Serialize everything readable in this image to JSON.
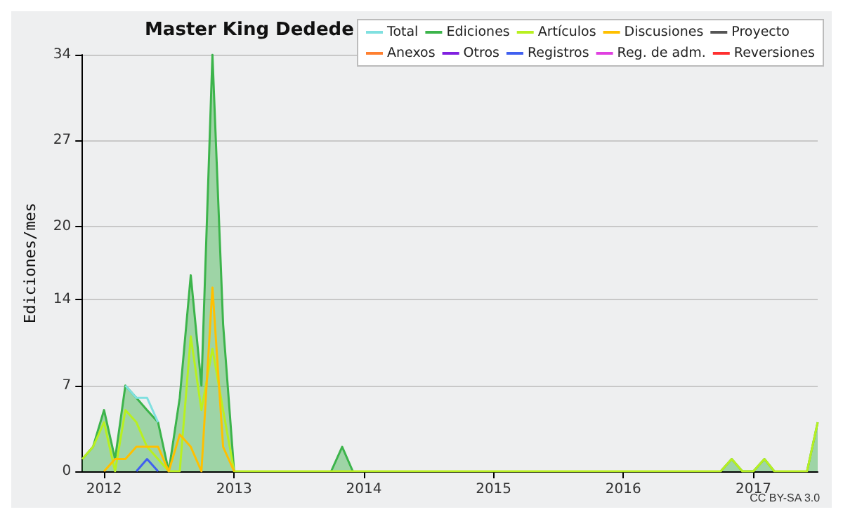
{
  "chart_data": {
    "type": "line",
    "title": "Master King Dedede",
    "ylabel": "Ediciones/mes",
    "annotations": [
      "CC BY-SA 3.0"
    ],
    "x": [
      "2011-11",
      "2011-12",
      "2012-01",
      "2012-02",
      "2012-03",
      "2012-04",
      "2012-05",
      "2012-06",
      "2012-07",
      "2012-08",
      "2012-09",
      "2012-10",
      "2012-11",
      "2012-12",
      "2013-01",
      "2013-02",
      "2013-03",
      "2013-04",
      "2013-05",
      "2013-06",
      "2013-07",
      "2013-08",
      "2013-09",
      "2013-10",
      "2013-11",
      "2013-12",
      "2014-01",
      "2014-02",
      "2014-03",
      "2014-04",
      "2014-05",
      "2014-06",
      "2014-07",
      "2014-08",
      "2014-09",
      "2014-10",
      "2014-11",
      "2014-12",
      "2015-01",
      "2015-02",
      "2015-03",
      "2015-04",
      "2015-05",
      "2015-06",
      "2015-07",
      "2015-08",
      "2015-09",
      "2015-10",
      "2015-11",
      "2015-12",
      "2016-01",
      "2016-02",
      "2016-03",
      "2016-04",
      "2016-05",
      "2016-06",
      "2016-07",
      "2016-08",
      "2016-09",
      "2016-10",
      "2016-11",
      "2016-12",
      "2017-01",
      "2017-02",
      "2017-03",
      "2017-04",
      "2017-05",
      "2017-06",
      "2017-07"
    ],
    "xlim": [
      "2011-11",
      "2017-07"
    ],
    "xticks": [
      {
        "value": "2012-01",
        "label": "2012"
      },
      {
        "value": "2013-01",
        "label": "2013"
      },
      {
        "value": "2014-01",
        "label": "2014"
      },
      {
        "value": "2015-01",
        "label": "2015"
      },
      {
        "value": "2016-01",
        "label": "2016"
      },
      {
        "value": "2017-01",
        "label": "2017"
      }
    ],
    "ylim": [
      0,
      34
    ],
    "yticks": [
      0,
      7,
      14,
      20,
      27,
      34
    ],
    "grid": "y",
    "legend": "top right",
    "marker": "none",
    "series": [
      {
        "name": "Total",
        "color": "#80e0e0",
        "values": [
          null,
          null,
          null,
          null,
          7,
          6,
          6,
          4,
          null,
          null,
          null,
          null,
          null,
          null,
          null,
          null,
          null,
          null,
          null,
          null,
          null,
          null,
          null,
          null,
          null,
          null,
          null,
          null,
          null,
          null,
          null,
          null,
          null,
          null,
          null,
          null,
          null,
          null,
          null,
          null,
          null,
          null,
          null,
          null,
          null,
          null,
          null,
          null,
          null,
          null,
          null,
          null,
          null,
          null,
          null,
          null,
          null,
          null,
          null,
          null,
          null,
          null,
          null,
          null,
          null,
          null,
          null,
          null,
          null
        ]
      },
      {
        "name": "Ediciones",
        "type": "area",
        "color": "#3cb44b",
        "values": [
          1,
          2,
          5,
          1,
          7,
          6,
          5,
          4,
          0,
          6,
          16,
          7,
          34,
          12,
          0,
          null,
          null,
          null,
          null,
          null,
          null,
          null,
          null,
          0,
          2,
          0,
          null,
          null,
          null,
          null,
          null,
          null,
          null,
          null,
          null,
          null,
          null,
          null,
          null,
          null,
          null,
          null,
          null,
          null,
          null,
          null,
          null,
          null,
          null,
          null,
          null,
          null,
          null,
          null,
          null,
          null,
          null,
          null,
          null,
          0,
          1,
          0,
          0,
          1,
          0,
          null,
          null,
          0,
          4
        ]
      },
      {
        "name": "Artículos",
        "color": "#b8f020",
        "values": [
          1,
          2,
          4,
          0,
          5,
          4,
          2,
          1,
          0,
          0,
          11,
          5,
          10,
          5,
          0,
          0,
          0,
          0,
          0,
          0,
          0,
          0,
          0,
          0,
          0,
          0,
          0,
          0,
          0,
          0,
          0,
          0,
          0,
          0,
          0,
          0,
          0,
          0,
          0,
          0,
          0,
          0,
          0,
          0,
          0,
          0,
          0,
          0,
          0,
          0,
          0,
          0,
          0,
          0,
          0,
          0,
          0,
          0,
          0,
          0,
          1,
          0,
          0,
          1,
          0,
          0,
          0,
          0,
          4
        ]
      },
      {
        "name": "Discusiones",
        "color": "#ffc000",
        "values": [
          null,
          null,
          0,
          1,
          1,
          2,
          2,
          2,
          0,
          3,
          2,
          0,
          15,
          2,
          0,
          null,
          null,
          null,
          null,
          null,
          null,
          null,
          null,
          null,
          null,
          null,
          null,
          null,
          null,
          null,
          null,
          null,
          null,
          null,
          null,
          null,
          null,
          null,
          null,
          null,
          null,
          null,
          null,
          null,
          null,
          null,
          null,
          null,
          null,
          null,
          null,
          null,
          null,
          null,
          null,
          null,
          null,
          null,
          null,
          null,
          null,
          null,
          null,
          null,
          null,
          null,
          null,
          null,
          null
        ]
      },
      {
        "name": "Proyecto",
        "color": "#555555",
        "values": [
          null,
          null,
          null,
          null,
          null,
          null,
          null,
          null,
          null,
          null,
          null,
          null,
          null,
          null,
          null,
          null,
          null,
          null,
          null,
          null,
          null,
          null,
          null,
          null,
          null,
          null,
          null,
          null,
          null,
          null,
          null,
          null,
          null,
          null,
          null,
          null,
          null,
          null,
          null,
          null,
          null,
          null,
          null,
          null,
          null,
          null,
          null,
          null,
          null,
          null,
          null,
          null,
          null,
          null,
          null,
          null,
          null,
          null,
          null,
          null,
          null,
          null,
          null,
          null,
          null,
          null,
          null,
          null,
          null
        ]
      },
      {
        "name": "Anexos",
        "color": "#ff8030",
        "values": [
          null,
          null,
          null,
          null,
          null,
          null,
          null,
          null,
          null,
          null,
          null,
          null,
          null,
          null,
          null,
          null,
          null,
          null,
          null,
          null,
          null,
          null,
          null,
          null,
          null,
          null,
          null,
          null,
          null,
          null,
          null,
          null,
          null,
          null,
          null,
          null,
          null,
          null,
          null,
          null,
          null,
          null,
          null,
          null,
          null,
          null,
          null,
          null,
          null,
          null,
          null,
          null,
          null,
          null,
          null,
          null,
          null,
          null,
          null,
          null,
          null,
          null,
          null,
          null,
          null,
          null,
          null,
          null,
          null
        ]
      },
      {
        "name": "Otros",
        "color": "#8020e0",
        "values": [
          null,
          null,
          null,
          null,
          null,
          null,
          null,
          null,
          null,
          null,
          null,
          null,
          null,
          null,
          null,
          null,
          null,
          null,
          null,
          null,
          null,
          null,
          null,
          null,
          null,
          null,
          null,
          null,
          null,
          null,
          null,
          null,
          null,
          null,
          null,
          null,
          null,
          null,
          null,
          null,
          null,
          null,
          null,
          null,
          null,
          null,
          null,
          null,
          null,
          null,
          null,
          null,
          null,
          null,
          null,
          null,
          null,
          null,
          null,
          null,
          null,
          null,
          null,
          null,
          null,
          null,
          null,
          null,
          null
        ]
      },
      {
        "name": "Registros",
        "color": "#4060f0",
        "values": [
          null,
          null,
          null,
          null,
          null,
          0,
          1,
          0,
          null,
          null,
          null,
          null,
          null,
          null,
          null,
          null,
          null,
          null,
          null,
          null,
          null,
          null,
          null,
          null,
          null,
          null,
          null,
          null,
          null,
          null,
          null,
          null,
          null,
          null,
          null,
          null,
          null,
          null,
          null,
          null,
          null,
          null,
          null,
          null,
          null,
          null,
          null,
          null,
          null,
          null,
          null,
          null,
          null,
          null,
          null,
          null,
          null,
          null,
          null,
          null,
          null,
          null,
          null,
          null,
          null,
          null,
          null,
          null,
          null
        ]
      },
      {
        "name": "Reg. de adm.",
        "color": "#e040e0",
        "values": [
          null,
          null,
          null,
          null,
          null,
          null,
          null,
          null,
          null,
          null,
          null,
          null,
          null,
          null,
          null,
          null,
          null,
          null,
          null,
          null,
          null,
          null,
          null,
          null,
          null,
          null,
          null,
          null,
          null,
          null,
          null,
          null,
          null,
          null,
          null,
          null,
          null,
          null,
          null,
          null,
          null,
          null,
          null,
          null,
          null,
          null,
          null,
          null,
          null,
          null,
          null,
          null,
          null,
          null,
          null,
          null,
          null,
          null,
          null,
          null,
          null,
          null,
          null,
          null,
          null,
          null,
          null,
          null,
          null
        ]
      },
      {
        "name": "Reversiones",
        "color": "#ff3030",
        "values": [
          null,
          null,
          null,
          null,
          null,
          null,
          null,
          null,
          null,
          null,
          null,
          null,
          null,
          null,
          null,
          null,
          null,
          null,
          null,
          null,
          null,
          null,
          null,
          null,
          null,
          null,
          null,
          null,
          null,
          null,
          null,
          null,
          null,
          null,
          null,
          null,
          null,
          null,
          null,
          null,
          null,
          null,
          null,
          null,
          null,
          null,
          null,
          null,
          null,
          null,
          null,
          null,
          null,
          null,
          null,
          null,
          null,
          null,
          null,
          null,
          null,
          null,
          null,
          null,
          null,
          null,
          null,
          null,
          null
        ]
      }
    ]
  }
}
